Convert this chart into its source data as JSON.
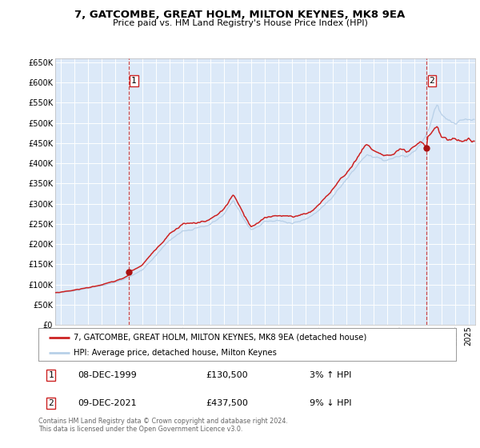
{
  "title": "7, GATCOMBE, GREAT HOLM, MILTON KEYNES, MK8 9EA",
  "subtitle": "Price paid vs. HM Land Registry's House Price Index (HPI)",
  "red_label": "7, GATCOMBE, GREAT HOLM, MILTON KEYNES, MK8 9EA (detached house)",
  "blue_label": "HPI: Average price, detached house, Milton Keynes",
  "annotation1_date": "08-DEC-1999",
  "annotation1_price": "£130,500",
  "annotation1_hpi": "3% ↑ HPI",
  "annotation2_date": "09-DEC-2021",
  "annotation2_price": "£437,500",
  "annotation2_hpi": "9% ↓ HPI",
  "marker1_year": 2000.0,
  "marker1_value": 130500,
  "marker2_year": 2021.92,
  "marker2_value": 437500,
  "vline1_year": 2000.0,
  "vline2_year": 2021.92,
  "ylim": [
    0,
    660000
  ],
  "xlim_start": 1994.6,
  "xlim_end": 2025.5,
  "background_color": "#dce9f8",
  "footer": "Contains HM Land Registry data © Crown copyright and database right 2024.\nThis data is licensed under the Open Government Licence v3.0.",
  "hpi_anchors": [
    [
      1994.6,
      78000
    ],
    [
      1995.0,
      80000
    ],
    [
      1996.0,
      84000
    ],
    [
      1997.0,
      90000
    ],
    [
      1998.0,
      97000
    ],
    [
      1999.0,
      105000
    ],
    [
      1999.5,
      110000
    ],
    [
      2000.0,
      118000
    ],
    [
      2001.0,
      135000
    ],
    [
      2002.0,
      172000
    ],
    [
      2003.0,
      210000
    ],
    [
      2004.0,
      232000
    ],
    [
      2005.0,
      238000
    ],
    [
      2006.0,
      248000
    ],
    [
      2007.0,
      272000
    ],
    [
      2007.7,
      308000
    ],
    [
      2008.5,
      262000
    ],
    [
      2009.0,
      235000
    ],
    [
      2009.5,
      242000
    ],
    [
      2010.0,
      255000
    ],
    [
      2011.0,
      258000
    ],
    [
      2012.0,
      252000
    ],
    [
      2013.0,
      260000
    ],
    [
      2014.0,
      283000
    ],
    [
      2015.0,
      318000
    ],
    [
      2016.0,
      358000
    ],
    [
      2017.0,
      402000
    ],
    [
      2017.5,
      422000
    ],
    [
      2018.0,
      415000
    ],
    [
      2018.5,
      410000
    ],
    [
      2019.0,
      407000
    ],
    [
      2019.5,
      412000
    ],
    [
      2020.0,
      418000
    ],
    [
      2020.5,
      415000
    ],
    [
      2021.0,
      428000
    ],
    [
      2021.5,
      448000
    ],
    [
      2022.0,
      478000
    ],
    [
      2022.3,
      508000
    ],
    [
      2022.5,
      530000
    ],
    [
      2022.7,
      542000
    ],
    [
      2023.0,
      520000
    ],
    [
      2023.5,
      505000
    ],
    [
      2024.0,
      500000
    ],
    [
      2024.5,
      505000
    ],
    [
      2025.0,
      510000
    ],
    [
      2025.4,
      505000
    ]
  ],
  "red_anchors": [
    [
      1994.6,
      79000
    ],
    [
      1995.0,
      81000
    ],
    [
      1996.0,
      86000
    ],
    [
      1997.0,
      92000
    ],
    [
      1998.0,
      99000
    ],
    [
      1999.0,
      108000
    ],
    [
      1999.5,
      114000
    ],
    [
      2000.0,
      122000
    ],
    [
      2000.08,
      130500
    ],
    [
      2001.0,
      148000
    ],
    [
      2002.0,
      187000
    ],
    [
      2003.0,
      225000
    ],
    [
      2004.0,
      250000
    ],
    [
      2005.0,
      252000
    ],
    [
      2006.0,
      260000
    ],
    [
      2007.0,
      285000
    ],
    [
      2007.7,
      322000
    ],
    [
      2008.5,
      272000
    ],
    [
      2009.0,
      242000
    ],
    [
      2009.5,
      250000
    ],
    [
      2010.0,
      265000
    ],
    [
      2011.0,
      272000
    ],
    [
      2012.0,
      267000
    ],
    [
      2013.0,
      275000
    ],
    [
      2013.5,
      282000
    ],
    [
      2014.0,
      298000
    ],
    [
      2015.0,
      335000
    ],
    [
      2016.0,
      375000
    ],
    [
      2016.5,
      398000
    ],
    [
      2017.0,
      422000
    ],
    [
      2017.5,
      448000
    ],
    [
      2018.0,
      432000
    ],
    [
      2018.5,
      425000
    ],
    [
      2019.0,
      418000
    ],
    [
      2019.5,
      422000
    ],
    [
      2020.0,
      432000
    ],
    [
      2020.5,
      428000
    ],
    [
      2021.0,
      438000
    ],
    [
      2021.5,
      452000
    ],
    [
      2021.92,
      437500
    ],
    [
      2022.0,
      465000
    ],
    [
      2022.3,
      478000
    ],
    [
      2022.5,
      488000
    ],
    [
      2022.7,
      492000
    ],
    [
      2023.0,
      465000
    ],
    [
      2023.5,
      458000
    ],
    [
      2024.0,
      460000
    ],
    [
      2024.5,
      455000
    ],
    [
      2025.0,
      460000
    ],
    [
      2025.4,
      455000
    ]
  ]
}
